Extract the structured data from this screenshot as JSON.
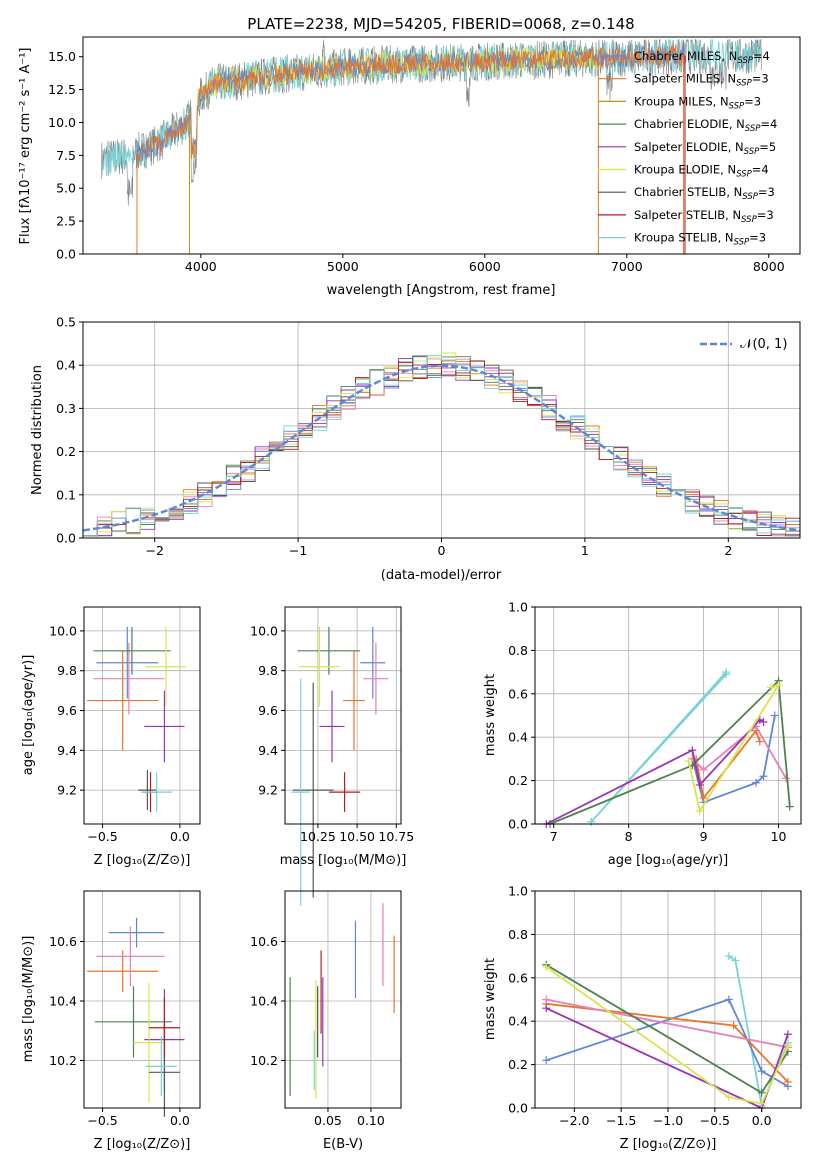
{
  "colors": {
    "chabrier_miles": "#5f86d6",
    "salpeter_miles": "#e8752a",
    "kroupa_miles": "#b9961c",
    "chabrier_elodie": "#4f8050",
    "salpeter_elodie": "#9a32b8",
    "kroupa_elodie": "#d6e64a",
    "chabrier_stelib": "#555555",
    "salpeter_stelib": "#b01e1e",
    "kroupa_stelib": "#79d2d8",
    "pink": "#e77fb8",
    "data": "#808080",
    "gauss": "#5f86d6"
  },
  "chart_data": [
    {
      "id": "spectrum",
      "type": "line",
      "title": "PLATE=2238, MJD=54205, FIBERID=0068, z=0.148",
      "xlabel": "wavelength [Angstrom, rest frame]",
      "ylabel": "Flux [fλ10⁻¹⁷ erg cm⁻² s⁻¹ A⁻¹]",
      "xlim": [
        3170,
        8220
      ],
      "ylim": [
        0,
        16.5
      ],
      "xticks": [
        "4000",
        "5000",
        "6000",
        "7000",
        "8000"
      ],
      "yticks": [
        "0.0",
        "2.5",
        "5.0",
        "7.5",
        "10.0",
        "12.5",
        "15.0"
      ],
      "legend_position": "top-right",
      "legend": [
        {
          "label": "Chabrier MILES, N",
          "sub": "SSP",
          "suffix": "=4"
        },
        {
          "label": "Salpeter MILES, N",
          "sub": "SSP",
          "suffix": "=3"
        },
        {
          "label": "Kroupa MILES, N",
          "sub": "SSP",
          "suffix": "=3"
        },
        {
          "label": "Chabrier ELODIE, N",
          "sub": "SSP",
          "suffix": "=4"
        },
        {
          "label": "Salpeter ELODIE, N",
          "sub": "SSP",
          "suffix": "=5"
        },
        {
          "label": "Kroupa ELODIE, N",
          "sub": "SSP",
          "suffix": "=4"
        },
        {
          "label": "Chabrier STELIB, N",
          "sub": "SSP",
          "suffix": "=3"
        },
        {
          "label": "Salpeter STELIB, N",
          "sub": "SSP",
          "suffix": "=3"
        },
        {
          "label": "Kroupa STELIB, N",
          "sub": "SSP",
          "suffix": "=3"
        }
      ],
      "continuum": [
        [
          3300,
          7.2
        ],
        [
          3500,
          7.5
        ],
        [
          3700,
          8.4
        ],
        [
          3900,
          10.0
        ],
        [
          4000,
          12.0
        ],
        [
          4100,
          13.0
        ],
        [
          4300,
          13.2
        ],
        [
          4500,
          13.6
        ],
        [
          4800,
          13.9
        ],
        [
          5000,
          14.2
        ],
        [
          5300,
          14.4
        ],
        [
          5600,
          14.5
        ],
        [
          5900,
          14.6
        ],
        [
          6200,
          14.7
        ],
        [
          6500,
          14.8
        ],
        [
          6800,
          14.9
        ],
        [
          7100,
          15.0
        ],
        [
          7400,
          15.1
        ],
        [
          7700,
          15.1
        ],
        [
          8000,
          15.2
        ],
        [
          8200,
          15.2
        ]
      ]
    },
    {
      "id": "histogram",
      "type": "histogram",
      "xlabel": "(data-model)/error",
      "ylabel": "Normed distribution",
      "xlim": [
        -2.5,
        2.5
      ],
      "ylim": [
        0,
        0.5
      ],
      "xticks": [
        "−2",
        "−1",
        "0",
        "1",
        "2"
      ],
      "yticks": [
        "0.0",
        "0.1",
        "0.2",
        "0.3",
        "0.4",
        "0.5"
      ],
      "legend_position": "top-right",
      "gauss_label": "𝒩(0, 1)",
      "bin_width": 0.1
    },
    {
      "id": "age_vs_Z",
      "type": "scatter",
      "xlabel": "Z [log₁₀(Z/Z⊙)]",
      "ylabel": "age  [log₁₀(age/yr)]",
      "xlim": [
        -0.62,
        0.13
      ],
      "ylim": [
        9.03,
        10.12
      ],
      "xticks": [
        "−0.5",
        "0.0"
      ],
      "yticks": [
        "9.2",
        "9.4",
        "9.6",
        "9.8",
        "10.0"
      ],
      "points": [
        {
          "color": "chabrier_miles",
          "x": -0.34,
          "y": 9.84,
          "ex": 0.2,
          "ey": 0.18
        },
        {
          "color": "salpeter_miles",
          "x": -0.37,
          "y": 9.65,
          "ex": 0.23,
          "ey": 0.25
        },
        {
          "color": "pink",
          "x": -0.33,
          "y": 9.76,
          "ex": 0.23,
          "ey": 0.18
        },
        {
          "color": "chabrier_elodie",
          "x": -0.31,
          "y": 9.9,
          "ex": 0.25,
          "ey": 0.12
        },
        {
          "color": "salpeter_elodie",
          "x": -0.1,
          "y": 9.52,
          "ex": 0.13,
          "ey": 0.18
        },
        {
          "color": "kroupa_elodie",
          "x": -0.09,
          "y": 9.82,
          "ex": 0.13,
          "ey": 0.2
        },
        {
          "color": "chabrier_stelib",
          "x": -0.21,
          "y": 9.2,
          "ex": 0.06,
          "ey": 0.1
        },
        {
          "color": "salpeter_stelib",
          "x": -0.19,
          "y": 9.19,
          "ex": 0.05,
          "ey": 0.1
        },
        {
          "color": "kroupa_stelib",
          "x": -0.15,
          "y": 9.19,
          "ex": 0.1,
          "ey": 0.1
        }
      ]
    },
    {
      "id": "age_vs_mass",
      "type": "scatter",
      "xlabel": "mass [log₁₀(M/M⊙)]",
      "xlim": [
        10.04,
        10.78
      ],
      "ylim": [
        9.03,
        10.12
      ],
      "xticks": [
        "10.25",
        "10.50",
        "10.75"
      ],
      "yticks": [
        "9.2",
        "9.4",
        "9.6",
        "9.8",
        "10.0"
      ],
      "points": [
        {
          "color": "chabrier_miles",
          "x": 10.6,
          "y": 9.84,
          "ex": 0.08,
          "ey": 0.18
        },
        {
          "color": "salpeter_miles",
          "x": 10.48,
          "y": 9.65,
          "ex": 0.07,
          "ey": 0.25
        },
        {
          "color": "pink",
          "x": 10.62,
          "y": 9.76,
          "ex": 0.08,
          "ey": 0.18
        },
        {
          "color": "chabrier_elodie",
          "x": 10.32,
          "y": 9.9,
          "ex": 0.2,
          "ey": 0.12
        },
        {
          "color": "salpeter_elodie",
          "x": 10.34,
          "y": 9.52,
          "ex": 0.08,
          "ey": 0.18
        },
        {
          "color": "kroupa_elodie",
          "x": 10.26,
          "y": 9.82,
          "ex": 0.13,
          "ey": 0.2
        },
        {
          "color": "chabrier_stelib",
          "x": 10.22,
          "y": 9.2,
          "ex": 0.13,
          "ey": 0.54
        },
        {
          "color": "salpeter_stelib",
          "x": 10.42,
          "y": 9.19,
          "ex": 0.1,
          "ey": 0.1
        },
        {
          "color": "kroupa_stelib",
          "x": 10.14,
          "y": 9.19,
          "ex": 0.06,
          "ey": 0.57
        }
      ]
    },
    {
      "id": "mass_weight_vs_age",
      "type": "line",
      "xlabel": "age  [log₁₀(age/yr)]",
      "ylabel": "mass weight",
      "xlim": [
        6.75,
        10.3
      ],
      "ylim": [
        0,
        1
      ],
      "xticks": [
        "7",
        "8",
        "9",
        "10"
      ],
      "yticks": [
        "0.0",
        "0.2",
        "0.4",
        "0.6",
        "0.8",
        "1.0"
      ],
      "series": [
        {
          "color": "kroupa_stelib",
          "x": [
            7.5,
            9.3,
            9.3,
            7.5
          ],
          "y": [
            0.01,
            0.69,
            0.7,
            0.01
          ]
        },
        {
          "color": "chabrier_miles",
          "x": [
            8.85,
            9.0,
            9.7,
            9.8,
            9.95
          ],
          "y": [
            0.3,
            0.1,
            0.19,
            0.22,
            0.5
          ]
        },
        {
          "color": "salpeter_miles",
          "x": [
            8.9,
            9.0,
            9.7,
            9.75
          ],
          "y": [
            0.3,
            0.12,
            0.43,
            0.38
          ]
        },
        {
          "color": "pink",
          "x": [
            8.85,
            9.0,
            9.7,
            10.1
          ],
          "y": [
            0.3,
            0.25,
            0.45,
            0.21
          ]
        },
        {
          "color": "chabrier_elodie",
          "x": [
            6.95,
            8.85,
            10.0,
            10.15
          ],
          "y": [
            0.0,
            0.27,
            0.66,
            0.08
          ]
        },
        {
          "color": "salpeter_elodie",
          "x": [
            6.9,
            8.85,
            8.95,
            9.75,
            9.8
          ],
          "y": [
            0.0,
            0.34,
            0.18,
            0.48,
            0.47
          ]
        },
        {
          "color": "kroupa_elodie",
          "x": [
            8.8,
            8.95,
            10.0,
            9.9
          ],
          "y": [
            0.29,
            0.06,
            0.64,
            0.63
          ]
        }
      ]
    },
    {
      "id": "mass_vs_Z",
      "type": "scatter",
      "xlabel": "Z [log₁₀(Z/Z⊙)]",
      "ylabel": "mass [log₁₀(M/M⊙)]",
      "xlim": [
        -0.62,
        0.13
      ],
      "ylim": [
        10.04,
        10.77
      ],
      "xticks": [
        "−0.5",
        "0.0"
      ],
      "yticks": [
        "10.2",
        "10.4",
        "10.6"
      ],
      "points": [
        {
          "color": "chabrier_miles",
          "x": -0.28,
          "y": 10.63,
          "ex": 0.18,
          "ey": 0.05
        },
        {
          "color": "salpeter_miles",
          "x": -0.37,
          "y": 10.5,
          "ex": 0.23,
          "ey": 0.07
        },
        {
          "color": "pink",
          "x": -0.32,
          "y": 10.55,
          "ex": 0.22,
          "ey": 0.1
        },
        {
          "color": "chabrier_elodie",
          "x": -0.3,
          "y": 10.33,
          "ex": 0.25,
          "ey": 0.12
        },
        {
          "color": "salpeter_elodie",
          "x": -0.1,
          "y": 10.27,
          "ex": 0.13,
          "ey": 0.17
        },
        {
          "color": "kroupa_elodie",
          "x": -0.2,
          "y": 10.26,
          "ex": 0.1,
          "ey": 0.2
        },
        {
          "color": "chabrier_stelib",
          "x": -0.1,
          "y": 10.16,
          "ex": 0.1,
          "ey": 0.15
        },
        {
          "color": "salpeter_stelib",
          "x": -0.1,
          "y": 10.31,
          "ex": 0.1,
          "ey": 0.1
        },
        {
          "color": "kroupa_stelib",
          "x": -0.12,
          "y": 10.18,
          "ex": 0.1,
          "ey": 0.1
        }
      ]
    },
    {
      "id": "mass_vs_EBV",
      "type": "scatter",
      "xlabel": "E(B-V)",
      "xlim": [
        0.0,
        0.135
      ],
      "ylim": [
        10.04,
        10.77
      ],
      "xticks": [
        "0.05",
        "0.10"
      ],
      "yticks": [
        "10.2",
        "10.4",
        "10.6"
      ],
      "points": [
        {
          "color": "chabrier_miles",
          "x": 0.082,
          "y": 10.54,
          "ex": 0.0,
          "ey": 0.13
        },
        {
          "color": "salpeter_miles",
          "x": 0.127,
          "y": 10.49,
          "ex": 0.0,
          "ey": 0.13
        },
        {
          "color": "pink",
          "x": 0.114,
          "y": 10.59,
          "ex": 0.0,
          "ey": 0.14
        },
        {
          "color": "chabrier_elodie",
          "x": 0.006,
          "y": 10.28,
          "ex": 0.0,
          "ey": 0.2
        },
        {
          "color": "salpeter_elodie",
          "x": 0.044,
          "y": 10.33,
          "ex": 0.0,
          "ey": 0.15
        },
        {
          "color": "kroupa_elodie",
          "x": 0.036,
          "y": 10.27,
          "ex": 0.0,
          "ey": 0.2
        },
        {
          "color": "chabrier_stelib",
          "x": 0.038,
          "y": 10.33,
          "ex": 0.0,
          "ey": 0.12
        },
        {
          "color": "salpeter_stelib",
          "x": 0.042,
          "y": 10.43,
          "ex": 0.0,
          "ey": 0.14
        },
        {
          "color": "kroupa_stelib",
          "x": 0.034,
          "y": 10.2,
          "ex": 0.0,
          "ey": 0.1
        }
      ]
    },
    {
      "id": "mass_weight_vs_Z",
      "type": "line",
      "xlabel": "Z [log₁₀(Z/Z⊙)]",
      "ylabel": "mass weight",
      "xlim": [
        -2.42,
        0.42
      ],
      "ylim": [
        0,
        1
      ],
      "xticks": [
        "−2.0",
        "−1.5",
        "−1.0",
        "−0.5",
        "0.0"
      ],
      "yticks": [
        "0.0",
        "0.2",
        "0.4",
        "0.6",
        "0.8",
        "1.0"
      ],
      "series": [
        {
          "color": "kroupa_stelib",
          "x": [
            -0.35,
            -0.28,
            0.0,
            0.28
          ],
          "y": [
            0.7,
            0.68,
            0.01,
            0.3
          ]
        },
        {
          "color": "chabrier_miles",
          "x": [
            -2.3,
            -0.35,
            0.0,
            0.28
          ],
          "y": [
            0.22,
            0.5,
            0.17,
            0.1
          ]
        },
        {
          "color": "salpeter_miles",
          "x": [
            -2.3,
            -0.3,
            0.28
          ],
          "y": [
            0.48,
            0.38,
            0.12
          ]
        },
        {
          "color": "pink",
          "x": [
            -2.3,
            0.28
          ],
          "y": [
            0.5,
            0.28
          ]
        },
        {
          "color": "chabrier_elodie",
          "x": [
            -2.3,
            0.0,
            0.28
          ],
          "y": [
            0.66,
            0.07,
            0.26
          ]
        },
        {
          "color": "salpeter_elodie",
          "x": [
            -2.3,
            0.0,
            0.28
          ],
          "y": [
            0.46,
            0.0,
            0.34
          ]
        },
        {
          "color": "kroupa_elodie",
          "x": [
            -2.3,
            -0.35,
            0.0,
            0.28
          ],
          "y": [
            0.65,
            0.05,
            0.02,
            0.29
          ]
        }
      ]
    }
  ]
}
